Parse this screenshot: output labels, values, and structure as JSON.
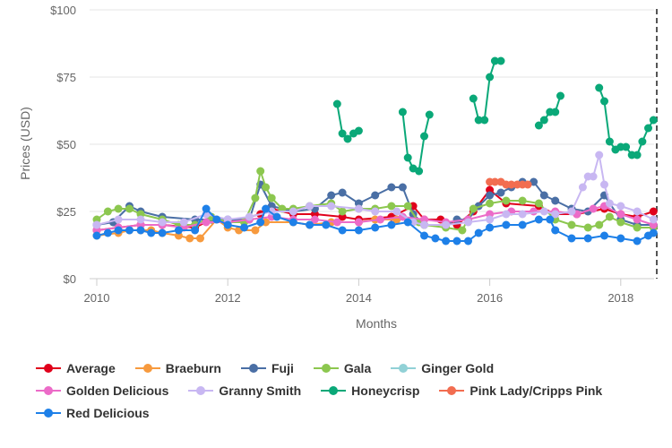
{
  "chart_data": {
    "type": "line",
    "title": "",
    "xlabel": "Months",
    "ylabel": "Prices (USD)",
    "xlim": [
      2010,
      2018.55
    ],
    "ylim": [
      0,
      100
    ],
    "x_ticks": [
      {
        "value": 2010,
        "label": "2010"
      },
      {
        "value": 2012,
        "label": "2012"
      },
      {
        "value": 2014,
        "label": "2014"
      },
      {
        "value": 2016,
        "label": "2016"
      },
      {
        "value": 2018,
        "label": "2018"
      }
    ],
    "y_ticks": [
      {
        "value": 0,
        "label": "$0"
      },
      {
        "value": 25,
        "label": "$25"
      },
      {
        "value": 50,
        "label": "$50"
      },
      {
        "value": 75,
        "label": "$75"
      },
      {
        "value": 100,
        "label": "$100"
      }
    ],
    "grid": "horizontal",
    "legend_position": "bottom",
    "series": [
      {
        "name": "Average",
        "color": "#e0001b",
        "points": [
          [
            2010.0,
            18
          ],
          [
            2010.33,
            19
          ],
          [
            2010.67,
            20
          ],
          [
            2011.0,
            20
          ],
          [
            2011.5,
            19
          ],
          [
            2011.75,
            22
          ],
          [
            2012.0,
            21
          ],
          [
            2012.5,
            24
          ],
          [
            2012.67,
            26
          ],
          [
            2013.0,
            24
          ],
          [
            2013.33,
            24
          ],
          [
            2013.75,
            23
          ],
          [
            2014.0,
            22
          ],
          [
            2014.5,
            23
          ],
          [
            2014.83,
            27
          ],
          [
            2015.0,
            22
          ],
          [
            2015.25,
            22
          ],
          [
            2015.5,
            20
          ],
          [
            2015.75,
            25
          ],
          [
            2016.0,
            33
          ],
          [
            2016.25,
            28
          ],
          [
            2016.75,
            27
          ],
          [
            2017.0,
            24
          ],
          [
            2017.33,
            24
          ],
          [
            2017.75,
            26
          ],
          [
            2018.0,
            24
          ],
          [
            2018.25,
            23
          ],
          [
            2018.5,
            25
          ]
        ]
      },
      {
        "name": "Braeburn",
        "color": "#f79a3e",
        "points": [
          [
            2010.0,
            16
          ],
          [
            2010.33,
            17
          ],
          [
            2010.5,
            18
          ],
          [
            2010.67,
            18
          ],
          [
            2010.83,
            18
          ],
          [
            2011.0,
            17
          ],
          [
            2011.25,
            16
          ],
          [
            2011.42,
            15
          ],
          [
            2011.58,
            15
          ],
          [
            2011.83,
            22
          ],
          [
            2012.0,
            19
          ],
          [
            2012.17,
            18
          ],
          [
            2012.42,
            18
          ],
          [
            2012.58,
            21
          ],
          [
            2013.0,
            21
          ],
          [
            2013.25,
            20
          ],
          [
            2013.58,
            21
          ],
          [
            2014.0,
            21
          ],
          [
            2014.25,
            22
          ],
          [
            2014.58,
            22
          ]
        ]
      },
      {
        "name": "Fuji",
        "color": "#4a6fa5",
        "points": [
          [
            2010.0,
            20
          ],
          [
            2010.25,
            21
          ],
          [
            2010.5,
            27
          ],
          [
            2010.67,
            25
          ],
          [
            2011.0,
            23
          ],
          [
            2011.5,
            22
          ],
          [
            2011.75,
            22
          ],
          [
            2012.0,
            22
          ],
          [
            2012.33,
            22
          ],
          [
            2012.5,
            35
          ],
          [
            2012.67,
            27
          ],
          [
            2013.0,
            25
          ],
          [
            2013.33,
            26
          ],
          [
            2013.58,
            31
          ],
          [
            2013.75,
            32
          ],
          [
            2014.0,
            28
          ],
          [
            2014.25,
            31
          ],
          [
            2014.5,
            34
          ],
          [
            2014.67,
            34
          ],
          [
            2014.83,
            24
          ],
          [
            2015.0,
            20
          ],
          [
            2015.33,
            20
          ],
          [
            2015.5,
            22
          ],
          [
            2015.67,
            22
          ],
          [
            2015.83,
            27
          ],
          [
            2016.0,
            31
          ],
          [
            2016.17,
            32
          ],
          [
            2016.33,
            34
          ],
          [
            2016.5,
            36
          ],
          [
            2016.67,
            36
          ],
          [
            2016.83,
            31
          ],
          [
            2017.0,
            29
          ],
          [
            2017.25,
            26
          ],
          [
            2017.5,
            25
          ],
          [
            2017.75,
            31
          ],
          [
            2018.0,
            22
          ],
          [
            2018.25,
            20
          ],
          [
            2018.5,
            20
          ]
        ]
      },
      {
        "name": "Gala",
        "color": "#8cc74f",
        "points": [
          [
            2010.0,
            22
          ],
          [
            2010.17,
            25
          ],
          [
            2010.33,
            26
          ],
          [
            2010.5,
            26
          ],
          [
            2010.67,
            24
          ],
          [
            2011.0,
            22
          ],
          [
            2011.25,
            20
          ],
          [
            2011.5,
            20
          ],
          [
            2011.75,
            23
          ],
          [
            2012.0,
            21
          ],
          [
            2012.25,
            21
          ],
          [
            2012.42,
            30
          ],
          [
            2012.5,
            40
          ],
          [
            2012.58,
            34
          ],
          [
            2012.67,
            30
          ],
          [
            2012.83,
            26
          ],
          [
            2013.0,
            26
          ],
          [
            2013.25,
            27
          ],
          [
            2013.58,
            28
          ],
          [
            2013.75,
            25
          ],
          [
            2014.0,
            26
          ],
          [
            2014.25,
            26
          ],
          [
            2014.5,
            27
          ],
          [
            2014.75,
            27
          ],
          [
            2014.92,
            21
          ],
          [
            2015.0,
            20
          ],
          [
            2015.33,
            19
          ],
          [
            2015.58,
            18
          ],
          [
            2015.75,
            26
          ],
          [
            2016.0,
            28
          ],
          [
            2016.25,
            29
          ],
          [
            2016.5,
            29
          ],
          [
            2016.75,
            28
          ],
          [
            2017.0,
            22
          ],
          [
            2017.25,
            20
          ],
          [
            2017.5,
            19
          ],
          [
            2017.67,
            20
          ],
          [
            2017.83,
            23
          ],
          [
            2018.0,
            21
          ],
          [
            2018.25,
            19
          ],
          [
            2018.5,
            19
          ]
        ]
      },
      {
        "name": "Ginger Gold",
        "color": "#91d1d6",
        "points": []
      },
      {
        "name": "Golden Delicious",
        "color": "#ec6bc8",
        "points": [
          [
            2010.0,
            18
          ],
          [
            2010.33,
            19
          ],
          [
            2010.67,
            20
          ],
          [
            2011.0,
            20
          ],
          [
            2011.33,
            19
          ],
          [
            2011.67,
            21
          ],
          [
            2012.0,
            21
          ],
          [
            2012.33,
            22
          ],
          [
            2012.67,
            23
          ],
          [
            2013.0,
            22
          ],
          [
            2013.33,
            22
          ],
          [
            2013.67,
            21
          ],
          [
            2014.0,
            21
          ],
          [
            2014.33,
            22
          ],
          [
            2014.67,
            23
          ],
          [
            2015.0,
            22
          ],
          [
            2015.33,
            21
          ],
          [
            2015.67,
            22
          ],
          [
            2016.0,
            24
          ],
          [
            2016.33,
            25
          ],
          [
            2016.67,
            25
          ],
          [
            2017.0,
            25
          ],
          [
            2017.33,
            24
          ],
          [
            2017.58,
            26
          ],
          [
            2017.75,
            27
          ],
          [
            2018.0,
            24
          ],
          [
            2018.25,
            22
          ],
          [
            2018.5,
            20
          ]
        ]
      },
      {
        "name": "Granny Smith",
        "color": "#c8b7f2",
        "points": [
          [
            2010.0,
            20
          ],
          [
            2010.33,
            22
          ],
          [
            2010.67,
            22
          ],
          [
            2011.0,
            21
          ],
          [
            2011.33,
            21
          ],
          [
            2011.67,
            24
          ],
          [
            2012.0,
            22
          ],
          [
            2012.33,
            23
          ],
          [
            2012.67,
            25
          ],
          [
            2013.0,
            25
          ],
          [
            2013.25,
            27
          ],
          [
            2013.58,
            27
          ],
          [
            2014.0,
            26
          ],
          [
            2014.25,
            25
          ],
          [
            2014.58,
            25
          ],
          [
            2014.83,
            21
          ],
          [
            2015.0,
            20
          ],
          [
            2015.33,
            20
          ],
          [
            2015.67,
            21
          ],
          [
            2016.0,
            22
          ],
          [
            2016.25,
            24
          ],
          [
            2016.5,
            24
          ],
          [
            2016.83,
            25
          ],
          [
            2017.0,
            24
          ],
          [
            2017.25,
            25
          ],
          [
            2017.42,
            34
          ],
          [
            2017.5,
            38
          ],
          [
            2017.58,
            38
          ],
          [
            2017.67,
            46
          ],
          [
            2017.75,
            35
          ],
          [
            2017.83,
            28
          ],
          [
            2018.0,
            27
          ],
          [
            2018.25,
            25
          ],
          [
            2018.5,
            22
          ]
        ]
      },
      {
        "name": "Honeycrisp",
        "segments": true,
        "color": "#0aa878",
        "points": [
          [
            2013.67,
            65
          ],
          [
            2013.75,
            54
          ],
          [
            2013.83,
            52
          ],
          [
            2013.92,
            54
          ],
          [
            2014.0,
            55
          ],
          null,
          [
            2014.67,
            62
          ],
          [
            2014.75,
            45
          ],
          [
            2014.83,
            41
          ],
          [
            2014.92,
            40
          ],
          [
            2015.0,
            53
          ],
          [
            2015.08,
            61
          ],
          null,
          [
            2015.75,
            67
          ],
          [
            2015.83,
            59
          ],
          [
            2015.92,
            59
          ],
          [
            2016.0,
            75
          ],
          [
            2016.08,
            81
          ],
          [
            2016.17,
            81
          ],
          null,
          [
            2016.75,
            57
          ],
          [
            2016.83,
            59
          ],
          [
            2016.92,
            62
          ],
          [
            2017.0,
            62
          ],
          [
            2017.08,
            68
          ],
          null,
          [
            2017.67,
            71
          ],
          [
            2017.75,
            66
          ],
          [
            2017.83,
            51
          ],
          [
            2017.92,
            48
          ],
          [
            2018.0,
            49
          ],
          [
            2018.08,
            49
          ],
          [
            2018.17,
            46
          ],
          [
            2018.25,
            46
          ],
          [
            2018.33,
            51
          ],
          [
            2018.42,
            56
          ],
          [
            2018.5,
            59
          ]
        ]
      },
      {
        "name": "Pink Lady/Cripps Pink",
        "color": "#f26d50",
        "points": [
          [
            2016.0,
            36
          ],
          [
            2016.08,
            36
          ],
          [
            2016.17,
            36
          ],
          [
            2016.25,
            35
          ],
          [
            2016.33,
            35
          ],
          [
            2016.42,
            35
          ],
          [
            2016.5,
            35
          ],
          [
            2016.58,
            35
          ]
        ]
      },
      {
        "name": "Red Delicious",
        "color": "#1e80e8",
        "points": [
          [
            2010.0,
            16
          ],
          [
            2010.17,
            17
          ],
          [
            2010.33,
            18
          ],
          [
            2010.5,
            18
          ],
          [
            2010.67,
            18
          ],
          [
            2010.83,
            17
          ],
          [
            2011.0,
            17
          ],
          [
            2011.25,
            18
          ],
          [
            2011.5,
            18
          ],
          [
            2011.67,
            26
          ],
          [
            2011.83,
            22
          ],
          [
            2012.0,
            20
          ],
          [
            2012.25,
            19
          ],
          [
            2012.5,
            21
          ],
          [
            2012.58,
            26
          ],
          [
            2012.75,
            23
          ],
          [
            2013.0,
            21
          ],
          [
            2013.25,
            20
          ],
          [
            2013.5,
            20
          ],
          [
            2013.75,
            18
          ],
          [
            2014.0,
            18
          ],
          [
            2014.25,
            19
          ],
          [
            2014.5,
            20
          ],
          [
            2014.75,
            21
          ],
          [
            2015.0,
            16
          ],
          [
            2015.17,
            15
          ],
          [
            2015.33,
            14
          ],
          [
            2015.5,
            14
          ],
          [
            2015.67,
            14
          ],
          [
            2015.83,
            17
          ],
          [
            2016.0,
            19
          ],
          [
            2016.25,
            20
          ],
          [
            2016.5,
            20
          ],
          [
            2016.75,
            22
          ],
          [
            2016.92,
            22
          ],
          [
            2017.0,
            18
          ],
          [
            2017.25,
            15
          ],
          [
            2017.5,
            15
          ],
          [
            2017.75,
            16
          ],
          [
            2018.0,
            15
          ],
          [
            2018.25,
            14
          ],
          [
            2018.42,
            16
          ],
          [
            2018.5,
            17
          ]
        ]
      }
    ]
  }
}
